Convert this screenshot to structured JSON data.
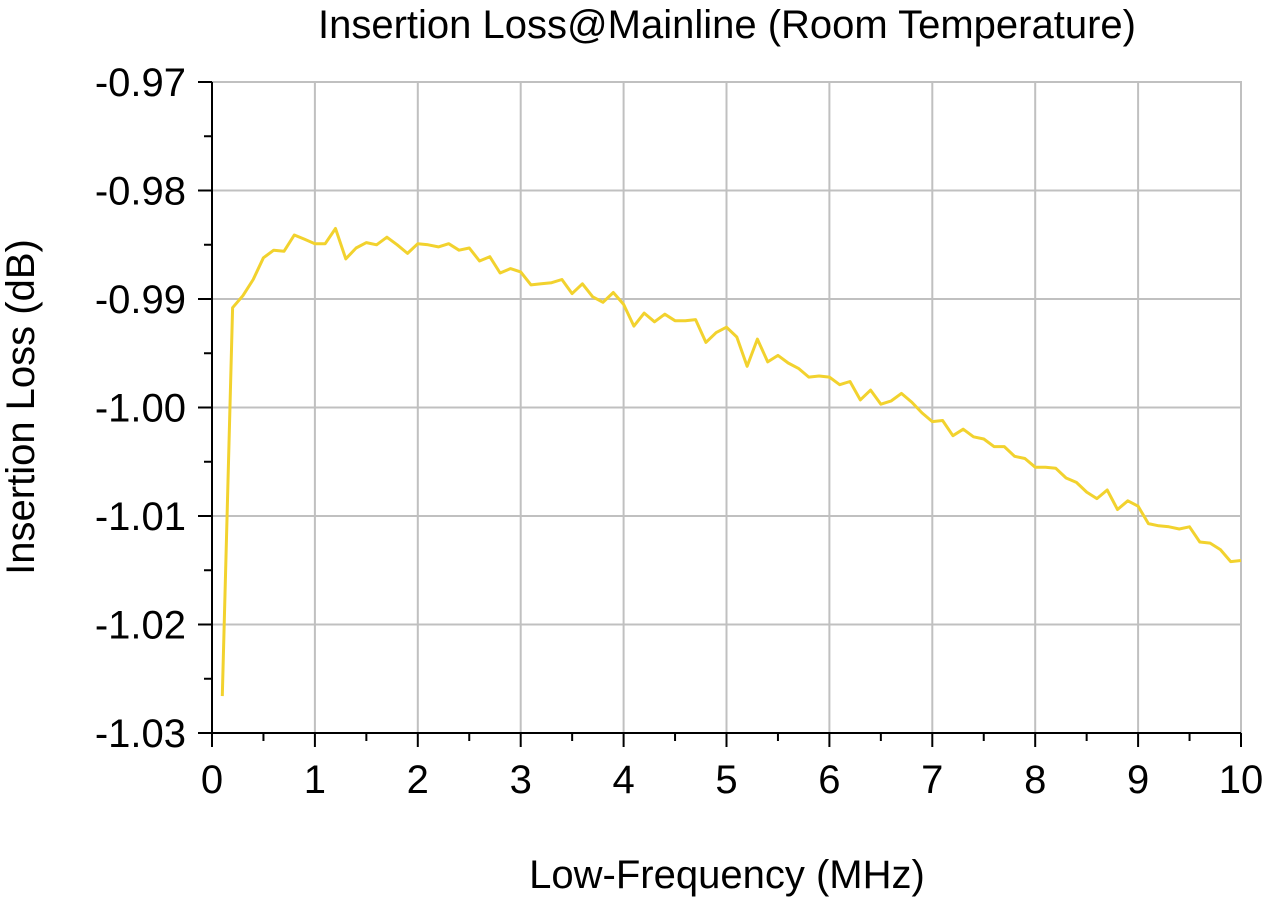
{
  "chart_data": {
    "type": "line",
    "title": "Insertion Loss@Mainline (Room Temperature)",
    "xlabel": "Low-Frequency (MHz)",
    "ylabel": "Insertion Loss (dB)",
    "xlim": [
      0,
      10
    ],
    "ylim": [
      -1.03,
      -0.97
    ],
    "x_ticks": [
      "0",
      "1",
      "2",
      "3",
      "4",
      "5",
      "6",
      "7",
      "8",
      "9",
      "10"
    ],
    "y_ticks": [
      "-0.97",
      "-0.98",
      "-0.99",
      "-1.00",
      "-1.01",
      "-1.02",
      "-1.03"
    ],
    "grid": true,
    "series": [
      {
        "color": "#f2d22e",
        "x": [
          0.1,
          0.2,
          0.3,
          0.4,
          0.5,
          0.6,
          0.7,
          0.8,
          0.9,
          1.0,
          1.1,
          1.2,
          1.3,
          1.4,
          1.5,
          1.6,
          1.7,
          1.8,
          1.9,
          2.0,
          2.1,
          2.2,
          2.3,
          2.4,
          2.5,
          2.6,
          2.7,
          2.8,
          2.9,
          3.0,
          3.1,
          3.2,
          3.3,
          3.4,
          3.5,
          3.6,
          3.7,
          3.8,
          3.9,
          4.0,
          4.1,
          4.2,
          4.3,
          4.4,
          4.5,
          4.6,
          4.7,
          4.8,
          4.9,
          5.0,
          5.1,
          5.2,
          5.3,
          5.4,
          5.5,
          5.6,
          5.7,
          5.8,
          5.9,
          6.0,
          6.1,
          6.2,
          6.3,
          6.4,
          6.5,
          6.6,
          6.7,
          6.8,
          6.9,
          7.0,
          7.1,
          7.2,
          7.3,
          7.4,
          7.5,
          7.6,
          7.7,
          7.8,
          7.9,
          8.0,
          8.1,
          8.2,
          8.3,
          8.4,
          8.5,
          8.6,
          8.7,
          8.8,
          8.9,
          9.0,
          9.1,
          9.2,
          9.3,
          9.4,
          9.5,
          9.6,
          9.7,
          9.8,
          9.9,
          10.0
        ],
        "y": [
          -1.0266,
          -0.9908,
          -0.9897,
          -0.9882,
          -0.9862,
          -0.9855,
          -0.9856,
          -0.9841,
          -0.9845,
          -0.9849,
          -0.9849,
          -0.9835,
          -0.9863,
          -0.9853,
          -0.9848,
          -0.985,
          -0.9843,
          -0.985,
          -0.9858,
          -0.9849,
          -0.985,
          -0.9852,
          -0.9849,
          -0.9855,
          -0.9853,
          -0.9865,
          -0.9861,
          -0.9876,
          -0.9872,
          -0.9875,
          -0.9887,
          -0.9886,
          -0.9885,
          -0.9882,
          -0.9895,
          -0.9886,
          -0.9898,
          -0.9903,
          -0.9894,
          -0.9905,
          -0.9925,
          -0.9913,
          -0.9921,
          -0.9914,
          -0.992,
          -0.992,
          -0.9919,
          -0.994,
          -0.9931,
          -0.9926,
          -0.9935,
          -0.9962,
          -0.9937,
          -0.9958,
          -0.9952,
          -0.9959,
          -0.9964,
          -0.9972,
          -0.9971,
          -0.9972,
          -0.9979,
          -0.9976,
          -0.9993,
          -0.9984,
          -0.9997,
          -0.9994,
          -0.9987,
          -0.9995,
          -1.0005,
          -1.0013,
          -1.0012,
          -1.0026,
          -1.002,
          -1.0027,
          -1.0029,
          -1.0036,
          -1.0036,
          -1.0045,
          -1.0047,
          -1.0055,
          -1.0055,
          -1.0056,
          -1.0065,
          -1.0069,
          -1.0078,
          -1.0084,
          -1.0076,
          -1.0094,
          -1.0086,
          -1.0091,
          -1.0107,
          -1.0109,
          -1.011,
          -1.0112,
          -1.011,
          -1.0124,
          -1.0125,
          -1.0131,
          -1.0142,
          -1.0141
        ]
      }
    ]
  }
}
